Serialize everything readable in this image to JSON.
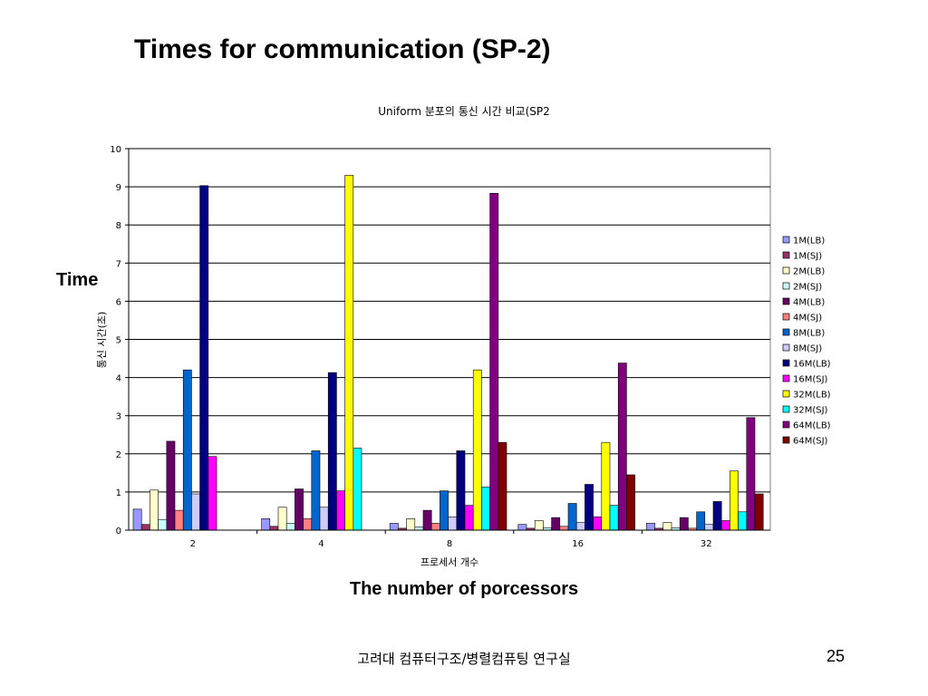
{
  "slide": {
    "title": "Times for communication (SP-2)",
    "time_label": "Time",
    "x_caption": "The number of porcessors",
    "footer": "고려대   컴퓨터구조/병렬컴퓨팅 연구실",
    "page_number": "25"
  },
  "chart_data": {
    "type": "bar",
    "title": "Uniform 분포의 통신 시간 비교(SP2",
    "xlabel": "프로세서 개수",
    "ylabel": "통신 시간(초)",
    "ylim": [
      0,
      10
    ],
    "yticks": [
      "0",
      "1",
      "2",
      "3",
      "4",
      "5",
      "6",
      "7",
      "8",
      "9",
      "10"
    ],
    "grid": true,
    "legend_position": "right",
    "categories": [
      "2",
      "4",
      "8",
      "16",
      "32"
    ],
    "series": [
      {
        "name": "1M(LB)",
        "color": "#9999FF",
        "values": [
          0.55,
          0.3,
          0.18,
          0.15,
          0.18
        ]
      },
      {
        "name": "1M(SJ)",
        "color": "#993366",
        "values": [
          0.15,
          0.1,
          0.05,
          0.05,
          0.05
        ]
      },
      {
        "name": "2M(LB)",
        "color": "#FFFFCC",
        "values": [
          1.05,
          0.6,
          0.3,
          0.25,
          0.2
        ]
      },
      {
        "name": "2M(SJ)",
        "color": "#CCFFFF",
        "values": [
          0.28,
          0.18,
          0.08,
          0.06,
          0.06
        ]
      },
      {
        "name": "4M(LB)",
        "color": "#660066",
        "values": [
          2.33,
          1.08,
          0.52,
          0.33,
          0.33
        ]
      },
      {
        "name": "4M(SJ)",
        "color": "#FF8080",
        "values": [
          0.52,
          0.3,
          0.18,
          0.1,
          0.05
        ]
      },
      {
        "name": "8M(LB)",
        "color": "#0066CC",
        "values": [
          4.2,
          2.08,
          1.03,
          0.7,
          0.48
        ]
      },
      {
        "name": "8M(SJ)",
        "color": "#CCCCFF",
        "values": [
          0.95,
          0.6,
          0.35,
          0.2,
          0.15
        ]
      },
      {
        "name": "16M(LB)",
        "color": "#000080",
        "values": [
          9.03,
          4.13,
          2.08,
          1.2,
          0.75
        ]
      },
      {
        "name": "16M(SJ)",
        "color": "#FF00FF",
        "values": [
          1.93,
          1.03,
          0.65,
          0.35,
          0.25
        ]
      },
      {
        "name": "32M(LB)",
        "color": "#FFFF00",
        "values": [
          null,
          9.3,
          4.2,
          2.3,
          1.55
        ]
      },
      {
        "name": "32M(SJ)",
        "color": "#00FFFF",
        "values": [
          null,
          2.15,
          1.13,
          0.65,
          0.48
        ]
      },
      {
        "name": "64M(LB)",
        "color": "#800080",
        "values": [
          null,
          null,
          8.83,
          4.38,
          2.95
        ]
      },
      {
        "name": "64M(SJ)",
        "color": "#800000",
        "values": [
          null,
          null,
          2.3,
          1.45,
          0.95
        ]
      }
    ]
  }
}
